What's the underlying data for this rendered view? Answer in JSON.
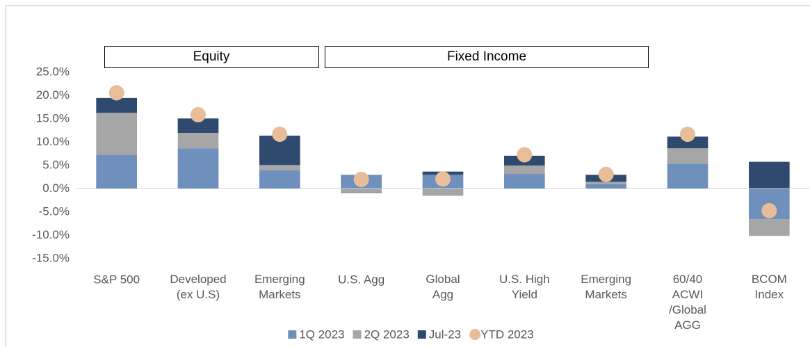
{
  "chart_data": {
    "type": "bar",
    "stacked": true,
    "categories": [
      "S&P 500",
      "Developed\n(ex U.S)",
      "Emerging\nMarkets",
      "U.S. Agg",
      "Global\nAgg",
      "U.S. High\nYield",
      "Emerging\nMarkets",
      "60/40\nACWI\n/Global\nAGG",
      "BCOM\nIndex"
    ],
    "series": [
      {
        "name": "1Q 2023",
        "color": "#6f8fbc",
        "type": "bar",
        "values": [
          7.3,
          8.7,
          4.0,
          3.0,
          3.0,
          3.2,
          1.0,
          5.4,
          -6.5
        ]
      },
      {
        "name": "2Q 2023",
        "color": "#a6a6a6",
        "type": "bar",
        "values": [
          9.0,
          3.3,
          1.1,
          -0.8,
          -1.5,
          1.8,
          0.5,
          3.3,
          -3.6
        ]
      },
      {
        "name": "Jul-23",
        "color": "#2e4a6e",
        "type": "bar",
        "values": [
          3.2,
          3.1,
          6.3,
          -0.1,
          0.7,
          2.1,
          1.5,
          2.5,
          5.8
        ]
      },
      {
        "name": "YTD 2023",
        "color": "#e8bd98",
        "type": "scatter",
        "values": [
          20.6,
          15.9,
          11.7,
          2.0,
          2.1,
          7.3,
          3.1,
          11.7,
          -4.7
        ]
      }
    ],
    "annotations": [
      "Equity",
      "Fixed Income"
    ],
    "ylim": [
      -15,
      25
    ],
    "yticks": [
      {
        "value": -15,
        "label": "-15.0%"
      },
      {
        "value": -10,
        "label": "-10.0%"
      },
      {
        "value": -5,
        "label": "-5.0%"
      },
      {
        "value": 0,
        "label": "0.0%"
      },
      {
        "value": 5,
        "label": "5.0%"
      },
      {
        "value": 10,
        "label": "10.0%"
      },
      {
        "value": 15,
        "label": "15.0%"
      },
      {
        "value": 20,
        "label": "20.0%"
      },
      {
        "value": 25,
        "label": "25.0%"
      }
    ],
    "grid": false,
    "legend": "bottom"
  }
}
